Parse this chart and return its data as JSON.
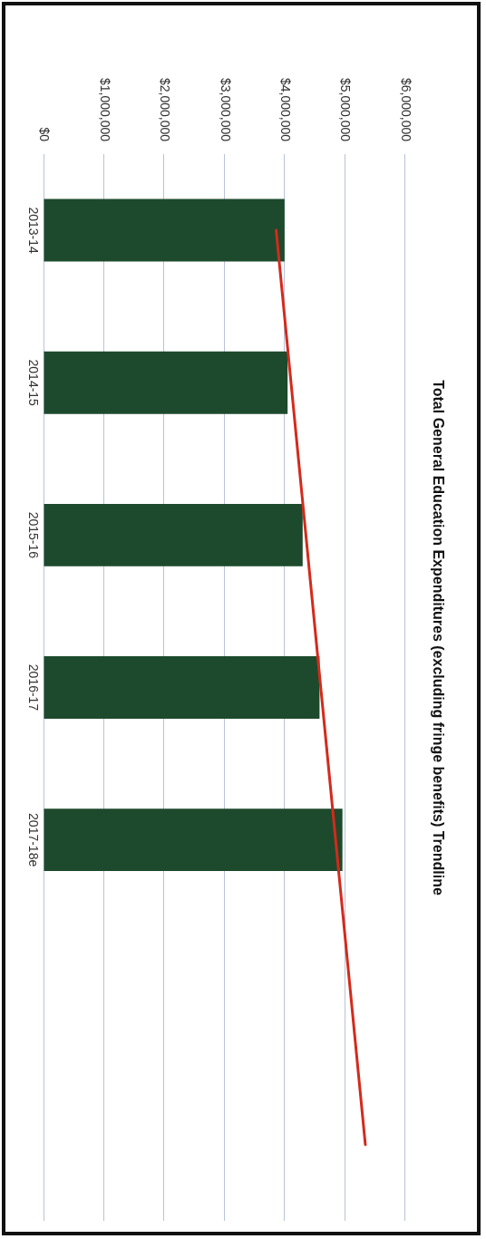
{
  "chart_data": {
    "type": "bar",
    "orientation": "horizontal",
    "title": "Total General Education Expenditures (excluding fringe benefits) Trendline",
    "categories": [
      "2013-14",
      "2014-15",
      "2015-16",
      "2016-17",
      "2017-18e",
      null,
      null
    ],
    "series": [
      {
        "color": "#1d4a2c",
        "values": [
          4000000,
          4050000,
          4300000,
          4580000,
          4960000,
          null,
          null
        ]
      },
      {
        "type": "line",
        "color": "#d42a1c",
        "values": [
          3860000,
          null,
          null,
          null,
          null,
          null,
          5340000
        ]
      }
    ],
    "xlim": [
      0,
      6000000
    ],
    "xticks": [
      {
        "value": 0,
        "label": "$0"
      },
      {
        "value": 1000000,
        "label": "$1,000,000"
      },
      {
        "value": 2000000,
        "label": "$2,000,000"
      },
      {
        "value": 3000000,
        "label": "$3,000,000"
      },
      {
        "value": 4000000,
        "label": "$4,000,000"
      },
      {
        "value": 5000000,
        "label": "$5,000,000"
      },
      {
        "value": 6000000,
        "label": "$6,000,000"
      }
    ],
    "grid": "x",
    "legend": false,
    "marker": "none"
  }
}
